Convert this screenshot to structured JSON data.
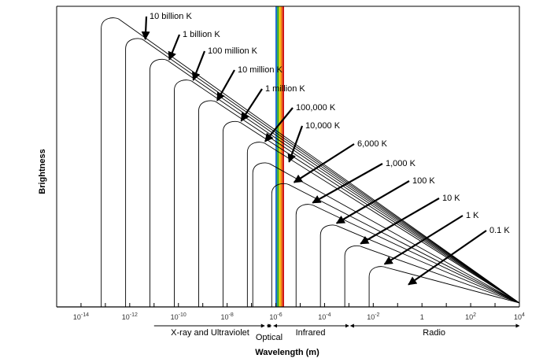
{
  "chart_data": {
    "type": "line",
    "title": "",
    "xlabel": "Wavelength (m)",
    "ylabel": "Brightness",
    "x_scale": "log",
    "xlim": [
      1e-15,
      10000.0
    ],
    "x_ticks": [
      {
        "value": 1e-14,
        "base": "10",
        "exp": "-14"
      },
      {
        "value": 1e-12,
        "base": "10",
        "exp": "-12"
      },
      {
        "value": 1e-10,
        "base": "10",
        "exp": "-10"
      },
      {
        "value": 1e-08,
        "base": "10",
        "exp": "-8"
      },
      {
        "value": 1e-06,
        "base": "10",
        "exp": "-6"
      },
      {
        "value": 0.0001,
        "base": "10",
        "exp": "-4"
      },
      {
        "value": 0.01,
        "base": "10",
        "exp": "-2"
      },
      {
        "value": 1,
        "base": "1",
        "exp": ""
      },
      {
        "value": 100.0,
        "base": "10",
        "exp": "2"
      },
      {
        "value": 10000.0,
        "base": "10",
        "exp": "4"
      }
    ],
    "series": [
      {
        "name": "10 billion K",
        "peak_wavelength_m": 3e-13
      },
      {
        "name": "1 billion K",
        "peak_wavelength_m": 3e-12
      },
      {
        "name": "100 million K",
        "peak_wavelength_m": 3e-11
      },
      {
        "name": "10 million K",
        "peak_wavelength_m": 3e-10
      },
      {
        "name": "1 million K",
        "peak_wavelength_m": 3e-09
      },
      {
        "name": "100,000 K",
        "peak_wavelength_m": 3e-08
      },
      {
        "name": "10,000 K",
        "peak_wavelength_m": 3e-07
      },
      {
        "name": "6,000 K",
        "peak_wavelength_m": 5e-07
      },
      {
        "name": "1,000 K",
        "peak_wavelength_m": 3e-06
      },
      {
        "name": "100 K",
        "peak_wavelength_m": 3e-05
      },
      {
        "name": "10 K",
        "peak_wavelength_m": 0.0003
      },
      {
        "name": "1 K",
        "peak_wavelength_m": 0.003
      },
      {
        "name": "0.1 K",
        "peak_wavelength_m": 0.03
      }
    ],
    "bands": [
      {
        "name": "X-ray and Ultraviolet",
        "range_m": [
          1e-11,
          4e-07
        ]
      },
      {
        "name": "Optical",
        "range_m": [
          4e-07,
          7e-07
        ]
      },
      {
        "name": "Infrared",
        "range_m": [
          7e-07,
          0.001
        ]
      },
      {
        "name": "Radio",
        "range_m": [
          0.001,
          10000.0
        ]
      }
    ],
    "visible_spectrum_colors": [
      "#1f6fd1",
      "#29a829",
      "#f2d20a",
      "#f07a10",
      "#d01818"
    ],
    "grid": false,
    "legend": "none"
  }
}
